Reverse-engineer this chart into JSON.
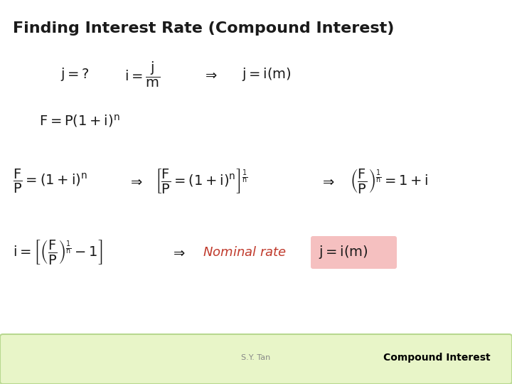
{
  "title": "Finding Interest Rate (Compound Interest)",
  "title_fontsize": 16,
  "title_fontweight": "bold",
  "bg_color": "#ffffff",
  "footer_bg_color": "#e8f5c8",
  "footer_border_color": "#b8d890",
  "footer_text_left": "S.Y. Tan",
  "footer_text_right": "Compound Interest",
  "footer_text_color": "#888888",
  "footer_right_color": "#000000",
  "eq_dark_color": "#1a1a1a",
  "eq_light_gray": "#555555",
  "nominal_rate_color": "#c0392b",
  "highlight_color": "#f5c0c0",
  "math_fontsize": 14
}
